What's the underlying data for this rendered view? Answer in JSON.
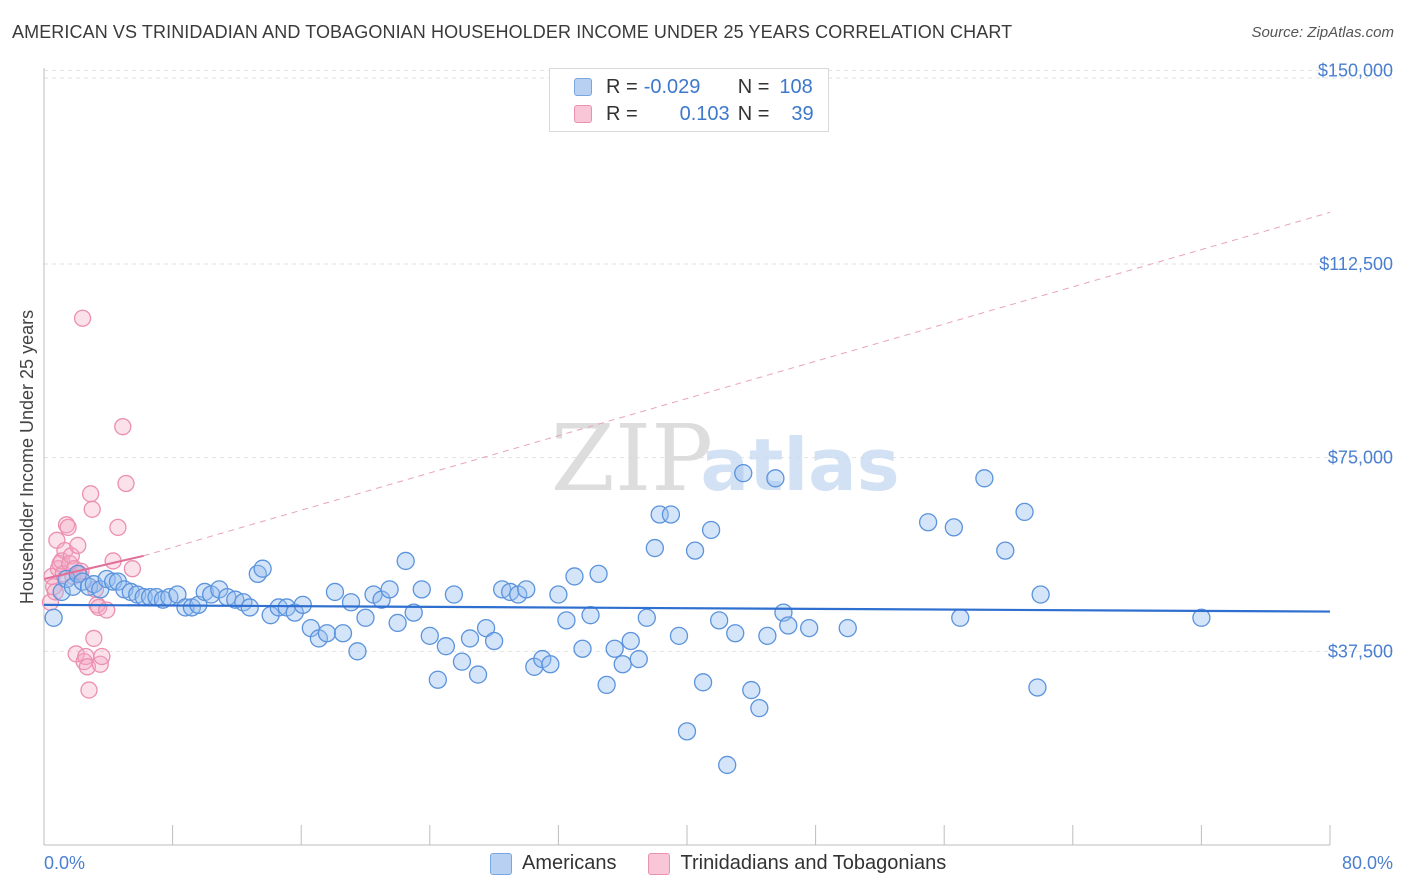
{
  "title": "AMERICAN VS TRINIDADIAN AND TOBAGONIAN HOUSEHOLDER INCOME UNDER 25 YEARS CORRELATION CHART",
  "source": "Source: ZipAtlas.com",
  "watermark": {
    "zip": "ZIP",
    "atlas": "atlas"
  },
  "legend": {
    "rows": [
      {
        "r_label": "R =",
        "r_value": "-0.029",
        "n_label": "N =",
        "n_value": "108"
      },
      {
        "r_label": "R =",
        "r_value": "0.103",
        "n_label": "N =",
        "n_value": "39"
      }
    ]
  },
  "chart_data": {
    "type": "scatter",
    "title": "AMERICAN VS TRINIDADIAN AND TOBAGONIAN HOUSEHOLDER INCOME UNDER 25 YEARS CORRELATION CHART",
    "xlabel": "",
    "ylabel": "Householder Income Under 25 years",
    "xlim": [
      0,
      80
    ],
    "ylim": [
      0,
      152000
    ],
    "x_tick_labels": [
      "0.0%",
      "80.0%"
    ],
    "y_ticks": [
      37500,
      75000,
      112500,
      150000
    ],
    "y_tick_labels": [
      "$37,500",
      "$75,000",
      "$112,500",
      "$150,000"
    ],
    "colors": {
      "Americans": "#6a9fe0",
      "Trinidadians and Tobagonians": "#ee8fb0",
      "blue_line": "#2f6fcf",
      "pink_line": "#e0709a"
    },
    "series": [
      {
        "name": "Americans",
        "trend": {
          "x": [
            0,
            80
          ],
          "y": [
            46500,
            45200
          ]
        },
        "points": [
          [
            0.6,
            44000
          ],
          [
            1.1,
            49000
          ],
          [
            1.4,
            51500
          ],
          [
            1.8,
            50000
          ],
          [
            2.1,
            52500
          ],
          [
            2.4,
            51000
          ],
          [
            2.8,
            50000
          ],
          [
            3.1,
            50500
          ],
          [
            3.5,
            49500
          ],
          [
            3.9,
            51500
          ],
          [
            4.3,
            51000
          ],
          [
            4.6,
            51000
          ],
          [
            5.0,
            49500
          ],
          [
            5.4,
            49000
          ],
          [
            5.8,
            48500
          ],
          [
            6.2,
            48000
          ],
          [
            6.6,
            48000
          ],
          [
            7.0,
            48000
          ],
          [
            7.4,
            47500
          ],
          [
            7.8,
            48000
          ],
          [
            8.3,
            48500
          ],
          [
            8.8,
            46000
          ],
          [
            9.2,
            46000
          ],
          [
            9.6,
            46500
          ],
          [
            10.0,
            49000
          ],
          [
            10.4,
            48500
          ],
          [
            10.9,
            49500
          ],
          [
            11.4,
            48000
          ],
          [
            11.9,
            47500
          ],
          [
            12.4,
            47000
          ],
          [
            12.8,
            46000
          ],
          [
            13.3,
            52500
          ],
          [
            13.6,
            53500
          ],
          [
            14.1,
            44500
          ],
          [
            14.6,
            46000
          ],
          [
            15.1,
            46000
          ],
          [
            15.6,
            45000
          ],
          [
            16.1,
            46500
          ],
          [
            16.6,
            42000
          ],
          [
            17.1,
            40000
          ],
          [
            17.6,
            41000
          ],
          [
            18.1,
            49000
          ],
          [
            18.6,
            41000
          ],
          [
            19.1,
            47000
          ],
          [
            19.5,
            37500
          ],
          [
            20.0,
            44000
          ],
          [
            20.5,
            48500
          ],
          [
            21.0,
            47500
          ],
          [
            21.5,
            49500
          ],
          [
            22.0,
            43000
          ],
          [
            22.5,
            55000
          ],
          [
            23.0,
            45000
          ],
          [
            23.5,
            49500
          ],
          [
            24.0,
            40500
          ],
          [
            24.5,
            32000
          ],
          [
            25.0,
            38500
          ],
          [
            25.5,
            48500
          ],
          [
            26.0,
            35500
          ],
          [
            26.5,
            40000
          ],
          [
            27.0,
            33000
          ],
          [
            27.5,
            42000
          ],
          [
            28.0,
            39500
          ],
          [
            28.5,
            49500
          ],
          [
            29.0,
            49000
          ],
          [
            29.5,
            48500
          ],
          [
            30.0,
            49500
          ],
          [
            30.5,
            34500
          ],
          [
            31.0,
            36000
          ],
          [
            31.5,
            35000
          ],
          [
            32.0,
            48500
          ],
          [
            32.5,
            43500
          ],
          [
            33.0,
            52000
          ],
          [
            33.5,
            38000
          ],
          [
            34.0,
            44500
          ],
          [
            34.5,
            52500
          ],
          [
            35.0,
            31000
          ],
          [
            35.5,
            38000
          ],
          [
            36.0,
            35000
          ],
          [
            36.5,
            39500
          ],
          [
            37.0,
            36000
          ],
          [
            37.5,
            44000
          ],
          [
            38.0,
            57500
          ],
          [
            38.3,
            64000
          ],
          [
            39.0,
            64000
          ],
          [
            39.5,
            40500
          ],
          [
            40.0,
            22000
          ],
          [
            40.5,
            57000
          ],
          [
            41.0,
            31500
          ],
          [
            41.5,
            61000
          ],
          [
            42.0,
            43500
          ],
          [
            42.5,
            15500
          ],
          [
            43.0,
            41000
          ],
          [
            43.5,
            72000
          ],
          [
            44.0,
            30000
          ],
          [
            44.5,
            26500
          ],
          [
            45.0,
            40500
          ],
          [
            45.5,
            71000
          ],
          [
            46.0,
            45000
          ],
          [
            46.3,
            42500
          ],
          [
            47.6,
            42000
          ],
          [
            50.0,
            42000
          ],
          [
            55.0,
            62500
          ],
          [
            56.6,
            61500
          ],
          [
            57.0,
            44000
          ],
          [
            58.5,
            71000
          ],
          [
            59.8,
            57000
          ],
          [
            61.0,
            64500
          ],
          [
            61.8,
            30500
          ],
          [
            62.0,
            48500
          ],
          [
            72.0,
            44000
          ]
        ]
      },
      {
        "name": "Trinidadians and Tobagonians",
        "trend": {
          "x": [
            0,
            6.2
          ],
          "y": [
            51500,
            56000
          ],
          "extended": {
            "x": [
              6.2,
              80
            ],
            "y": [
              56000,
              122500
            ]
          }
        },
        "points": [
          [
            0.4,
            47000
          ],
          [
            0.5,
            52000
          ],
          [
            0.6,
            50000
          ],
          [
            0.7,
            49000
          ],
          [
            0.8,
            59000
          ],
          [
            0.9,
            53500
          ],
          [
            1.0,
            54500
          ],
          [
            1.1,
            55000
          ],
          [
            1.2,
            52500
          ],
          [
            1.3,
            57000
          ],
          [
            1.4,
            62000
          ],
          [
            1.5,
            61500
          ],
          [
            1.6,
            54500
          ],
          [
            1.7,
            56000
          ],
          [
            1.8,
            52000
          ],
          [
            1.9,
            53500
          ],
          [
            2.0,
            37000
          ],
          [
            2.1,
            58000
          ],
          [
            2.2,
            52500
          ],
          [
            2.3,
            53000
          ],
          [
            2.4,
            102000
          ],
          [
            2.5,
            35500
          ],
          [
            2.6,
            36500
          ],
          [
            2.7,
            34500
          ],
          [
            2.8,
            30000
          ],
          [
            2.9,
            68000
          ],
          [
            3.0,
            65000
          ],
          [
            3.1,
            40000
          ],
          [
            3.2,
            49500
          ],
          [
            3.3,
            46500
          ],
          [
            3.4,
            46000
          ],
          [
            3.5,
            35000
          ],
          [
            3.6,
            36500
          ],
          [
            3.9,
            45500
          ],
          [
            4.3,
            55000
          ],
          [
            4.6,
            61500
          ],
          [
            4.9,
            81000
          ],
          [
            5.1,
            70000
          ],
          [
            5.5,
            53500
          ]
        ]
      }
    ]
  }
}
